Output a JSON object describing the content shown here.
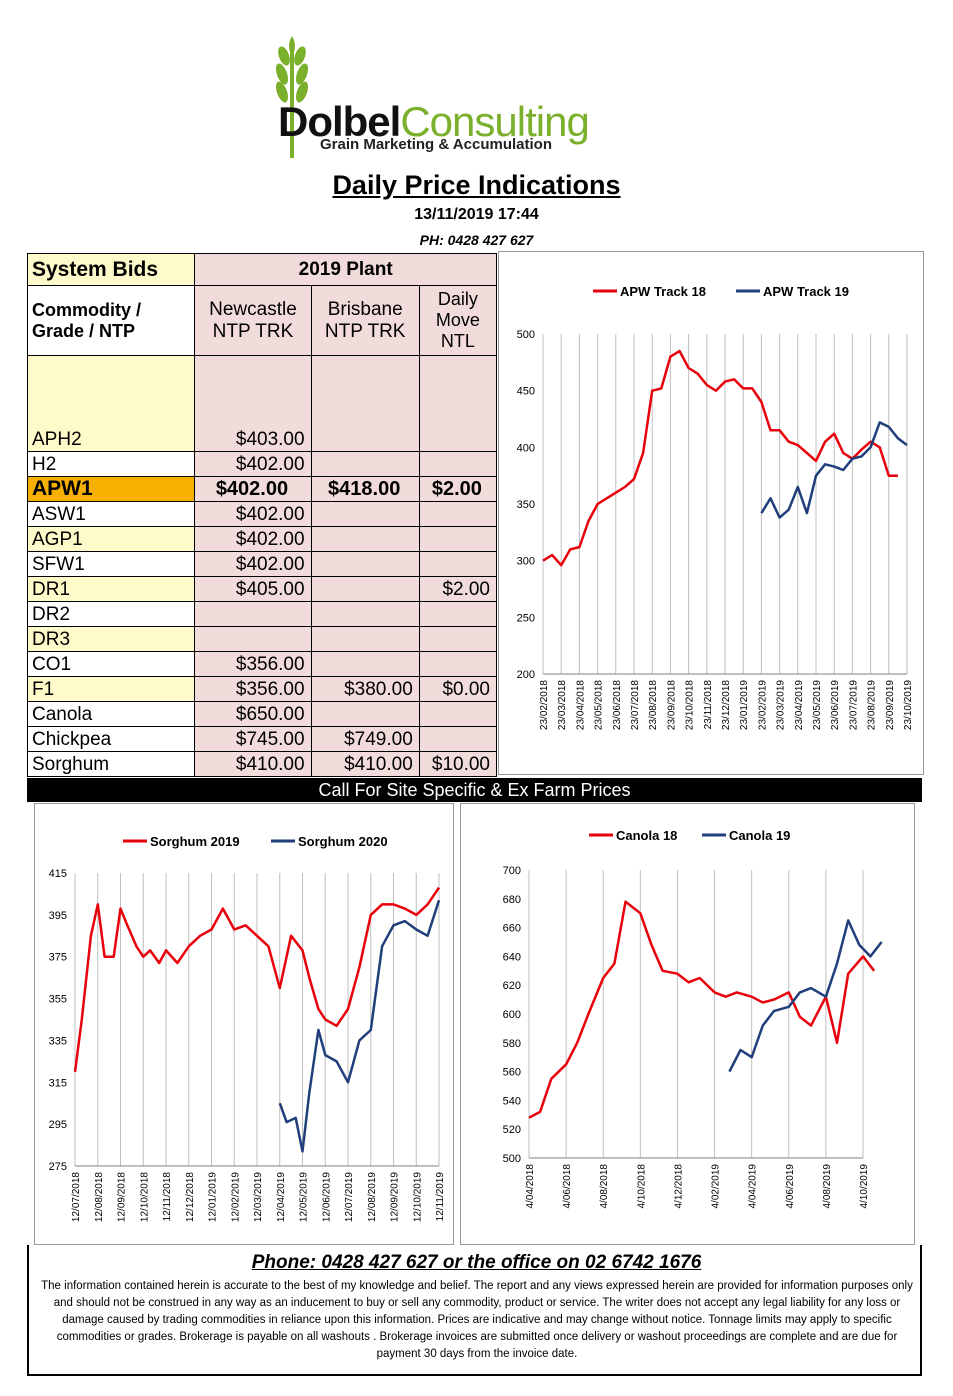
{
  "header": {
    "logo_brand_1": "Dolbel",
    "logo_brand_2": "Consulting",
    "logo_tagline": "Grain Marketing & Accumulation",
    "title": "Daily Price Indications",
    "date": "13/11/2019 17:44",
    "phone": "PH: 0428 427 627"
  },
  "table": {
    "system_bids": "System Bids",
    "plant": "2019 Plant",
    "commodity_header": "Commodity / Grade / NTP",
    "col_newcastle": "Newcastle NTP TRK",
    "col_brisbane": "Brisbane NTP TRK",
    "col_move": "Daily Move NTL",
    "rows": [
      {
        "grade": "APH2",
        "newcastle": "$403.00",
        "brisbane": "",
        "move": ""
      },
      {
        "grade": "H2",
        "newcastle": "$402.00",
        "brisbane": "",
        "move": ""
      },
      {
        "grade": "APW1",
        "newcastle": "$402.00",
        "brisbane": "$418.00",
        "move": "$2.00"
      },
      {
        "grade": "ASW1",
        "newcastle": "$402.00",
        "brisbane": "",
        "move": ""
      },
      {
        "grade": "AGP1",
        "newcastle": "$402.00",
        "brisbane": "",
        "move": ""
      },
      {
        "grade": "SFW1",
        "newcastle": "$402.00",
        "brisbane": "",
        "move": ""
      },
      {
        "grade": "DR1",
        "newcastle": "$405.00",
        "brisbane": "",
        "move": "$2.00"
      },
      {
        "grade": "DR2",
        "newcastle": "",
        "brisbane": "",
        "move": ""
      },
      {
        "grade": "DR3",
        "newcastle": "",
        "brisbane": "",
        "move": ""
      },
      {
        "grade": "CO1",
        "newcastle": "$356.00",
        "brisbane": "",
        "move": ""
      },
      {
        "grade": "F1",
        "newcastle": "$356.00",
        "brisbane": "$380.00",
        "move": "$0.00"
      },
      {
        "grade": "Canola",
        "newcastle": "$650.00",
        "brisbane": "",
        "move": ""
      },
      {
        "grade": "Chickpea",
        "newcastle": "$745.00",
        "brisbane": "$749.00",
        "move": ""
      },
      {
        "grade": "Sorghum",
        "newcastle": "$410.00",
        "brisbane": "$410.00",
        "move": "$10.00"
      }
    ]
  },
  "banner": "Call For Site Specific & Ex Farm Prices",
  "footer": {
    "phone": "Phone: 0428 427 627 or the office on 02 6742 1676",
    "disclaimer": "The information contained herein is accurate to the best of my knowledge and belief.  The report and any views expressed herein are provided for information purposes only and should not be construed in any way as an inducement to buy or sell any commodity, product or service. The writer does not accept any legal liability for any loss or damage caused by trading commodities in reliance upon this information. Prices are indicative and may change without notice. Tonnage limits may apply to specific commodities or grades.  Brokerage is payable on all washouts . Brokerage invoices are submitted once delivery or washout proceedings are complete and are due for payment 30 days from the invoice date."
  },
  "colors": {
    "red": "#e8000b",
    "blue": "#1f3e7a",
    "orange": "#f8b000",
    "yellow": "#fefac9",
    "pink": "#f2dcdb"
  },
  "chart_data": [
    {
      "type": "line",
      "ylim": [
        200,
        500
      ],
      "yticks": [
        200,
        250,
        300,
        350,
        400,
        450,
        500
      ],
      "xticks": [
        "23/02/2018",
        "23/03/2018",
        "23/04/2018",
        "23/05/2018",
        "23/06/2018",
        "23/07/2018",
        "23/08/2018",
        "23/09/2018",
        "23/10/2018",
        "23/11/2018",
        "23/12/2018",
        "23/01/2019",
        "23/02/2019",
        "23/03/2019",
        "23/04/2019",
        "23/05/2019",
        "23/06/2019",
        "23/07/2019",
        "23/08/2019",
        "23/09/2019",
        "23/10/2019"
      ],
      "series": [
        {
          "name": "APW Track 18",
          "color": "red",
          "x_index": [
            0,
            0.5,
            1,
            1.5,
            2,
            2.5,
            3,
            3.5,
            4,
            4.5,
            5,
            5.5,
            6,
            6.5,
            7,
            7.5,
            8,
            8.5,
            9,
            9.5,
            10,
            10.5,
            11,
            11.5,
            12,
            12.5,
            13,
            13.5,
            14,
            14.5,
            15,
            15.5,
            16,
            16.5,
            17,
            17.5,
            18,
            18.5,
            19,
            19.5
          ],
          "values": [
            300,
            305,
            296,
            310,
            312,
            335,
            350,
            355,
            360,
            365,
            372,
            395,
            450,
            452,
            480,
            485,
            470,
            465,
            455,
            450,
            458,
            460,
            452,
            452,
            440,
            415,
            415,
            405,
            402,
            395,
            388,
            405,
            412,
            395,
            390,
            398,
            405,
            400,
            375,
            375
          ]
        },
        {
          "name": "APW Track 19",
          "color": "blue",
          "x_index": [
            12,
            12.5,
            13,
            13.5,
            14,
            14.5,
            15,
            15.5,
            16,
            16.5,
            17,
            17.5,
            18,
            18.5,
            19,
            19.5,
            20
          ],
          "values": [
            342,
            355,
            338,
            345,
            365,
            342,
            375,
            385,
            383,
            380,
            390,
            392,
            400,
            422,
            418,
            408,
            402
          ]
        }
      ]
    },
    {
      "type": "line",
      "ylim": [
        275,
        415
      ],
      "yticks": [
        275,
        295,
        315,
        335,
        355,
        375,
        395,
        415
      ],
      "xticks": [
        "12/07/2018",
        "12/08/2018",
        "12/09/2018",
        "12/10/2018",
        "12/11/2018",
        "12/12/2018",
        "12/01/2019",
        "12/02/2019",
        "12/03/2019",
        "12/04/2019",
        "12/05/2019",
        "12/06/2019",
        "12/07/2019",
        "12/08/2019",
        "12/09/2019",
        "12/10/2019",
        "12/11/2019"
      ],
      "series": [
        {
          "name": "Sorghum 2019",
          "color": "red",
          "x_index": [
            0,
            0.3,
            0.7,
            1,
            1.3,
            1.7,
            2,
            2.3,
            2.7,
            3,
            3.3,
            3.7,
            4,
            4.5,
            5,
            5.5,
            6,
            6.5,
            7,
            7.5,
            8,
            8.5,
            9,
            9.5,
            10,
            10.3,
            10.7,
            11,
            11.5,
            12,
            12.5,
            13,
            13.5,
            14,
            14.5,
            15,
            15.5,
            16
          ],
          "values": [
            320,
            345,
            385,
            400,
            375,
            375,
            398,
            390,
            380,
            375,
            378,
            372,
            378,
            372,
            380,
            385,
            388,
            398,
            388,
            390,
            385,
            380,
            360,
            385,
            378,
            365,
            350,
            345,
            342,
            350,
            370,
            395,
            400,
            400,
            398,
            395,
            400,
            408
          ]
        },
        {
          "name": "Sorghum 2020",
          "color": "blue",
          "x_index": [
            9,
            9.3,
            9.7,
            10,
            10.3,
            10.7,
            11,
            11.5,
            12,
            12.5,
            13,
            13.5,
            14,
            14.5,
            15,
            15.5,
            16
          ],
          "values": [
            305,
            296,
            298,
            282,
            310,
            340,
            328,
            325,
            315,
            335,
            340,
            380,
            390,
            392,
            388,
            385,
            402
          ]
        }
      ]
    },
    {
      "type": "line",
      "ylim": [
        500,
        700
      ],
      "yticks": [
        500,
        520,
        540,
        560,
        580,
        600,
        620,
        640,
        660,
        680,
        700
      ],
      "xticks": [
        "4/04/2018",
        "4/06/2018",
        "4/08/2018",
        "4/10/2018",
        "4/12/2018",
        "4/02/2019",
        "4/04/2019",
        "4/06/2019",
        "4/08/2019",
        "4/10/2019"
      ],
      "series": [
        {
          "name": "Canola 18",
          "color": "red",
          "x_index": [
            0,
            0.3,
            0.6,
            1,
            1.3,
            1.6,
            2,
            2.3,
            2.6,
            3,
            3.3,
            3.6,
            4,
            4.3,
            4.6,
            5,
            5.3,
            5.6,
            6,
            6.3,
            6.6,
            7,
            7.3,
            7.6,
            8,
            8.3,
            8.6,
            9,
            9.3
          ],
          "values": [
            528,
            532,
            555,
            565,
            580,
            600,
            625,
            635,
            678,
            670,
            648,
            630,
            628,
            622,
            625,
            615,
            612,
            615,
            612,
            608,
            610,
            615,
            598,
            592,
            612,
            580,
            628,
            640,
            630
          ]
        },
        {
          "name": "Canola 19",
          "color": "blue",
          "x_index": [
            5.4,
            5.7,
            6,
            6.3,
            6.6,
            7,
            7.3,
            7.6,
            8,
            8.3,
            8.6,
            8.9,
            9.2,
            9.5
          ],
          "values": [
            560,
            575,
            570,
            592,
            602,
            605,
            615,
            618,
            612,
            635,
            665,
            648,
            640,
            650
          ]
        }
      ]
    }
  ]
}
